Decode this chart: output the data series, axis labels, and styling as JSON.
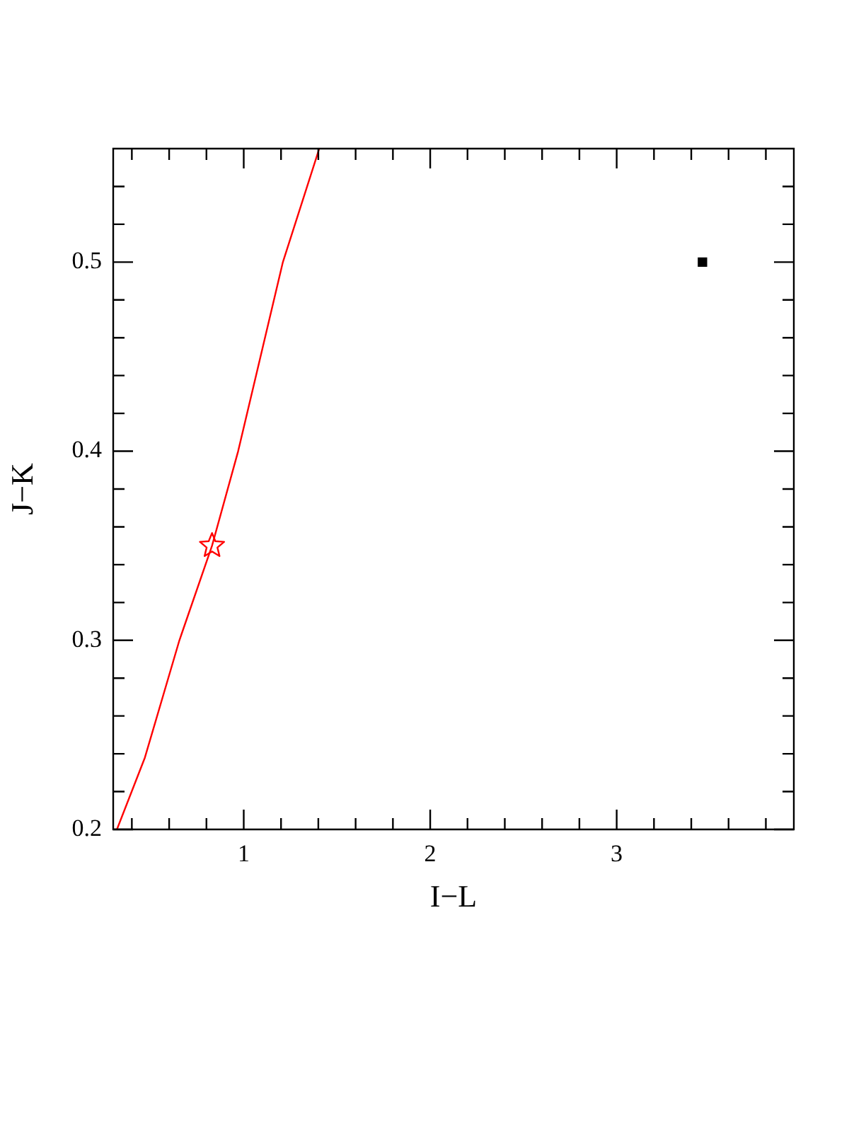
{
  "chart_data": {
    "type": "scatter",
    "xlabel": "I−L",
    "ylabel": "J−K",
    "xlim": [
      0.3,
      3.95
    ],
    "ylim": [
      0.2,
      0.56
    ],
    "xticks": [
      {
        "value": 0.4,
        "label": null
      },
      {
        "value": 0.6,
        "label": null
      },
      {
        "value": 0.8,
        "label": null
      },
      1,
      {
        "value": 1.2,
        "label": null
      },
      {
        "value": 1.4,
        "label": null
      },
      {
        "value": 1.6,
        "label": null
      },
      {
        "value": 1.8,
        "label": null
      },
      2,
      {
        "value": 2.2,
        "label": null
      },
      {
        "value": 2.4,
        "label": null
      },
      {
        "value": 2.6,
        "label": null
      },
      {
        "value": 2.8,
        "label": null
      },
      3,
      {
        "value": 3.2,
        "label": null
      },
      {
        "value": 3.4,
        "label": null
      },
      {
        "value": 3.6,
        "label": null
      },
      {
        "value": 3.8,
        "label": null
      }
    ],
    "yticks": [
      0.2,
      {
        "value": 0.22,
        "label": null
      },
      {
        "value": 0.24,
        "label": null
      },
      {
        "value": 0.26,
        "label": null
      },
      {
        "value": 0.28,
        "label": null
      },
      0.3,
      {
        "value": 0.32,
        "label": null
      },
      {
        "value": 0.34,
        "label": null
      },
      {
        "value": 0.36,
        "label": null
      },
      {
        "value": 0.38,
        "label": null
      },
      0.4,
      {
        "value": 0.42,
        "label": null
      },
      {
        "value": 0.44,
        "label": null
      },
      {
        "value": 0.46,
        "label": null
      },
      {
        "value": 0.48,
        "label": null
      },
      0.5,
      {
        "value": 0.52,
        "label": null
      },
      {
        "value": 0.54,
        "label": null
      }
    ],
    "series": [
      {
        "type": "line",
        "color": "#ff0000",
        "marker": "none",
        "x": [
          0.32,
          0.47,
          0.655,
          0.83,
          0.97,
          1.21,
          1.405
        ],
        "values": [
          0.2,
          0.238,
          0.3,
          0.35,
          0.4,
          0.5,
          0.56
        ]
      },
      {
        "type": "scatter",
        "color": "#ff0000",
        "marker": "star",
        "x": [
          0.83
        ],
        "values": [
          0.35
        ]
      },
      {
        "type": "scatter",
        "color": "#000000",
        "marker": "square",
        "x": [
          3.46
        ],
        "values": [
          0.5
        ]
      }
    ]
  }
}
